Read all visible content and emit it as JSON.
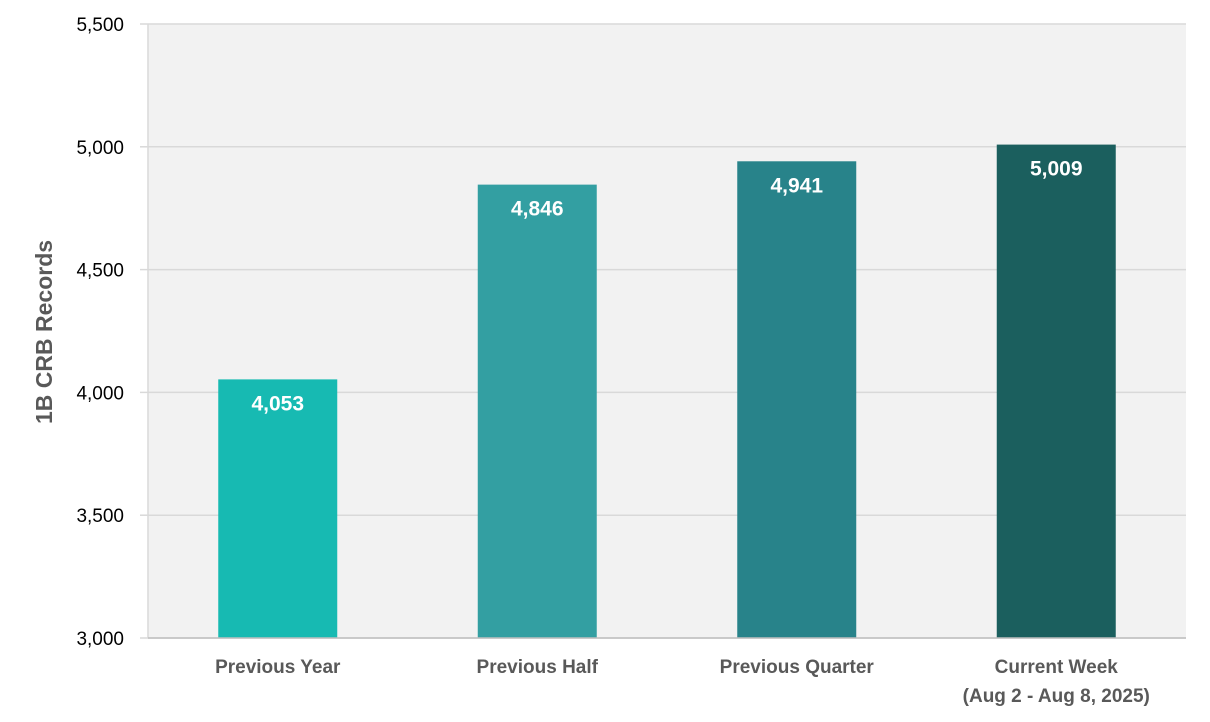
{
  "chart_data": {
    "type": "bar",
    "title": "",
    "xlabel": "",
    "ylabel": "1B CRB Records",
    "ylim": [
      3000,
      5500
    ],
    "yticks": [
      3000,
      3500,
      4000,
      4500,
      5000,
      5500
    ],
    "ytick_labels": [
      "3,000",
      "3,500",
      "4,000",
      "4,500",
      "5,000",
      "5,500"
    ],
    "categories": [
      [
        "Previous Year"
      ],
      [
        "Previous Half"
      ],
      [
        "Previous Quarter"
      ],
      [
        "Current Week",
        "(Aug 2 - Aug 8, 2025)"
      ]
    ],
    "values": [
      4053,
      4846,
      4941,
      5009
    ],
    "value_labels": [
      "4,053",
      "4,846",
      "4,941",
      "5,009"
    ],
    "bar_colors": [
      "#17bab2",
      "#339fa2",
      "#28838a",
      "#1b5f5e"
    ],
    "grid": true,
    "legend": "none",
    "plot_background": "#f2f2f2",
    "gridline_color": "#d9d9d9"
  }
}
